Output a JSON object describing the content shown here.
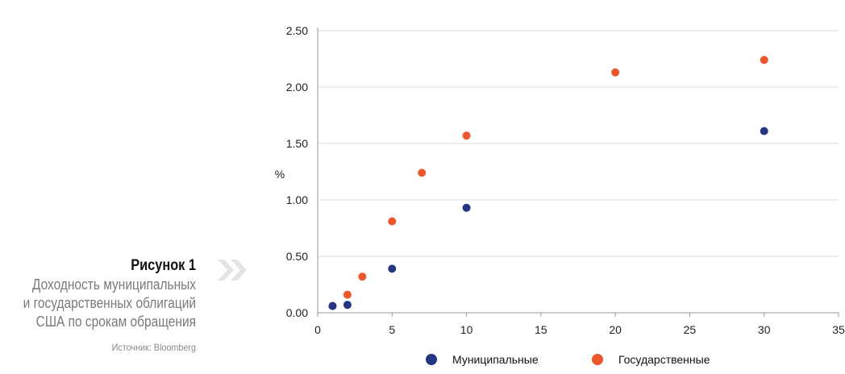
{
  "figure": {
    "title": "Рисунок 1",
    "subtitle_lines": [
      "Доходность муниципальных",
      "и государственных облигаций",
      "США по срокам обращения"
    ],
    "source": "Источник: Bloomberg"
  },
  "chart_data": {
    "type": "scatter",
    "ylabel": "%",
    "xlabel": "",
    "xlim": [
      0,
      35
    ],
    "ylim": [
      0,
      2.5
    ],
    "x_ticks": [
      0,
      5,
      10,
      15,
      20,
      25,
      30,
      35
    ],
    "y_ticks": [
      "0.00",
      "0.50",
      "1.00",
      "1.50",
      "2.00",
      "2.50"
    ],
    "grid": "horizontal",
    "legend_position": "bottom",
    "series": [
      {
        "name": "Муниципальные",
        "color": "#233583",
        "points": [
          {
            "x": 1,
            "y": 0.06
          },
          {
            "x": 2,
            "y": 0.07
          },
          {
            "x": 5,
            "y": 0.39
          },
          {
            "x": 10,
            "y": 0.93
          },
          {
            "x": 30,
            "y": 1.61
          }
        ]
      },
      {
        "name": "Государственные",
        "color": "#e9572b",
        "points": [
          {
            "x": 1,
            "y": 0.06
          },
          {
            "x": 2,
            "y": 0.16
          },
          {
            "x": 3,
            "y": 0.32
          },
          {
            "x": 5,
            "y": 0.81
          },
          {
            "x": 7,
            "y": 1.24
          },
          {
            "x": 10,
            "y": 1.57
          },
          {
            "x": 20,
            "y": 2.13
          },
          {
            "x": 30,
            "y": 2.24
          }
        ]
      }
    ]
  }
}
